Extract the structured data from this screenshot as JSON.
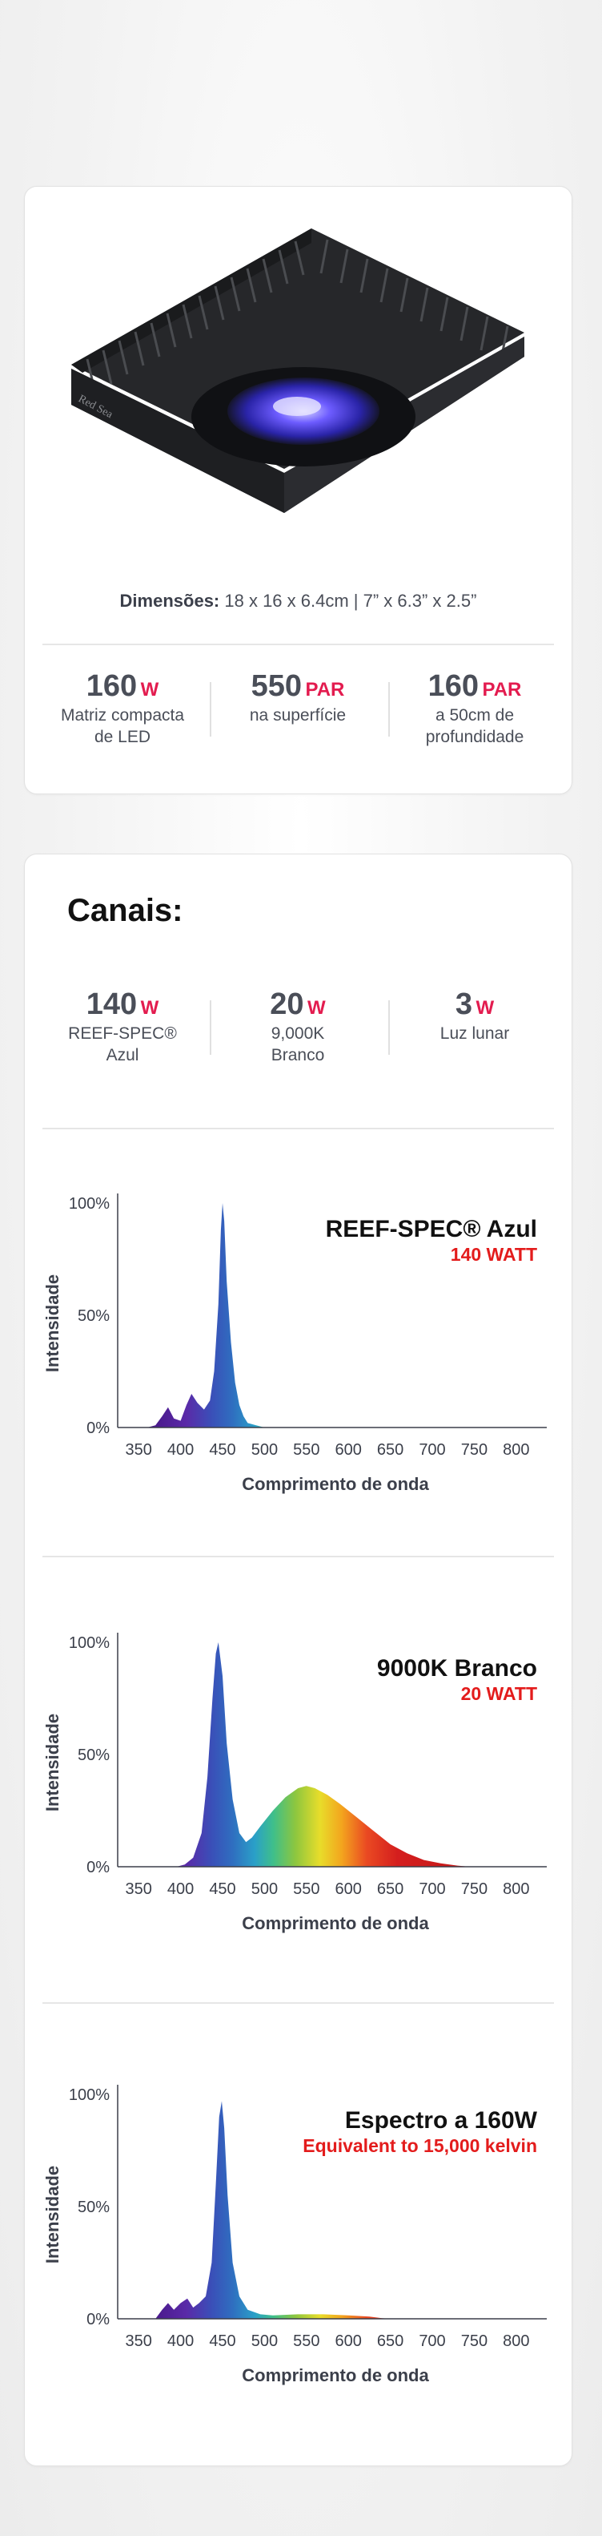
{
  "card1": {
    "brand_mark": "Red Sea",
    "dimensions_label": "Dimensões:",
    "dimensions_value": " 18 x 16 x 6.4cm | 7” x 6.3” x 2.5”",
    "stats": [
      {
        "value": "160",
        "unit": "W",
        "desc1": "Matriz compacta",
        "desc2": "de LED"
      },
      {
        "value": "550",
        "unit": "PAR",
        "desc1": "na superfície",
        "desc2": ""
      },
      {
        "value": "160",
        "unit": "PAR",
        "desc1": "a 50cm de",
        "desc2": "profundidade"
      }
    ]
  },
  "card2": {
    "title": "Canais:",
    "channels": [
      {
        "value": "140",
        "unit": "W",
        "desc1": "REEF-SPEC®",
        "desc2": "Azul"
      },
      {
        "value": "20",
        "unit": "W",
        "desc1": "9,000K",
        "desc2": "Branco"
      },
      {
        "value": "3",
        "unit": "W",
        "desc1": "Luz lunar",
        "desc2": ""
      }
    ]
  },
  "colors": {
    "accent": "#e31c4f",
    "chart_subtitle": "#e31c1c",
    "text": "#3b3f4a"
  },
  "chart_data": [
    {
      "type": "area",
      "title": "REEF-SPEC® Azul",
      "subtitle": "140 WATT",
      "xlabel": "Comprimento de onda",
      "ylabel": "Intensidade",
      "yticks": [
        "100%",
        "50%",
        "0%"
      ],
      "xticks": [
        "350",
        "400",
        "450",
        "500",
        "550",
        "600",
        "650",
        "700",
        "750",
        "800"
      ],
      "xlim": [
        325,
        825
      ],
      "ylim": [
        0,
        100
      ],
      "x": [
        360,
        370,
        378,
        385,
        392,
        400,
        407,
        413,
        420,
        428,
        435,
        440,
        445,
        448,
        450,
        452,
        455,
        460,
        465,
        470,
        475,
        480,
        490,
        500,
        520
      ],
      "y": [
        0,
        1,
        5,
        9,
        4,
        3,
        10,
        15,
        11,
        8,
        12,
        25,
        55,
        88,
        100,
        92,
        65,
        38,
        20,
        10,
        5,
        2,
        1,
        0,
        0
      ]
    },
    {
      "type": "area",
      "title": "9000K Branco",
      "subtitle": "20 WATT",
      "xlabel": "Comprimento de onda",
      "ylabel": "Intensidade",
      "yticks": [
        "100%",
        "50%",
        "0%"
      ],
      "xticks": [
        "350",
        "400",
        "450",
        "500",
        "550",
        "600",
        "650",
        "700",
        "750",
        "800"
      ],
      "xlim": [
        325,
        825
      ],
      "ylim": [
        0,
        100
      ],
      "x": [
        395,
        405,
        415,
        425,
        432,
        438,
        442,
        445,
        450,
        455,
        462,
        470,
        478,
        485,
        495,
        510,
        525,
        540,
        550,
        560,
        575,
        590,
        610,
        630,
        650,
        670,
        690,
        710,
        730,
        745
      ],
      "y": [
        0,
        1,
        4,
        15,
        40,
        75,
        95,
        100,
        85,
        55,
        30,
        15,
        11,
        13,
        18,
        25,
        31,
        35,
        36,
        35,
        32,
        28,
        22,
        16,
        10,
        6,
        3,
        1.5,
        0.5,
        0
      ]
    },
    {
      "type": "area",
      "title": "Espectro a 160W",
      "subtitle": "Equivalent to 15,000 kelvin",
      "xlabel": "Comprimento de onda",
      "ylabel": "Intensidade",
      "yticks": [
        "100%",
        "50%",
        "0%"
      ],
      "xticks": [
        "350",
        "400",
        "450",
        "500",
        "550",
        "600",
        "650",
        "700",
        "750",
        "800"
      ],
      "xlim": [
        325,
        825
      ],
      "ylim": [
        0,
        100
      ],
      "x": [
        370,
        378,
        385,
        392,
        400,
        408,
        415,
        422,
        430,
        437,
        442,
        446,
        449,
        452,
        456,
        462,
        470,
        480,
        495,
        510,
        540,
        570,
        600,
        625,
        640,
        650
      ],
      "y": [
        0,
        4,
        7,
        4,
        7,
        9,
        5,
        7,
        10,
        25,
        60,
        90,
        97,
        85,
        55,
        25,
        10,
        4,
        2,
        1.5,
        2,
        2,
        1.5,
        1,
        0.3,
        0
      ]
    }
  ]
}
